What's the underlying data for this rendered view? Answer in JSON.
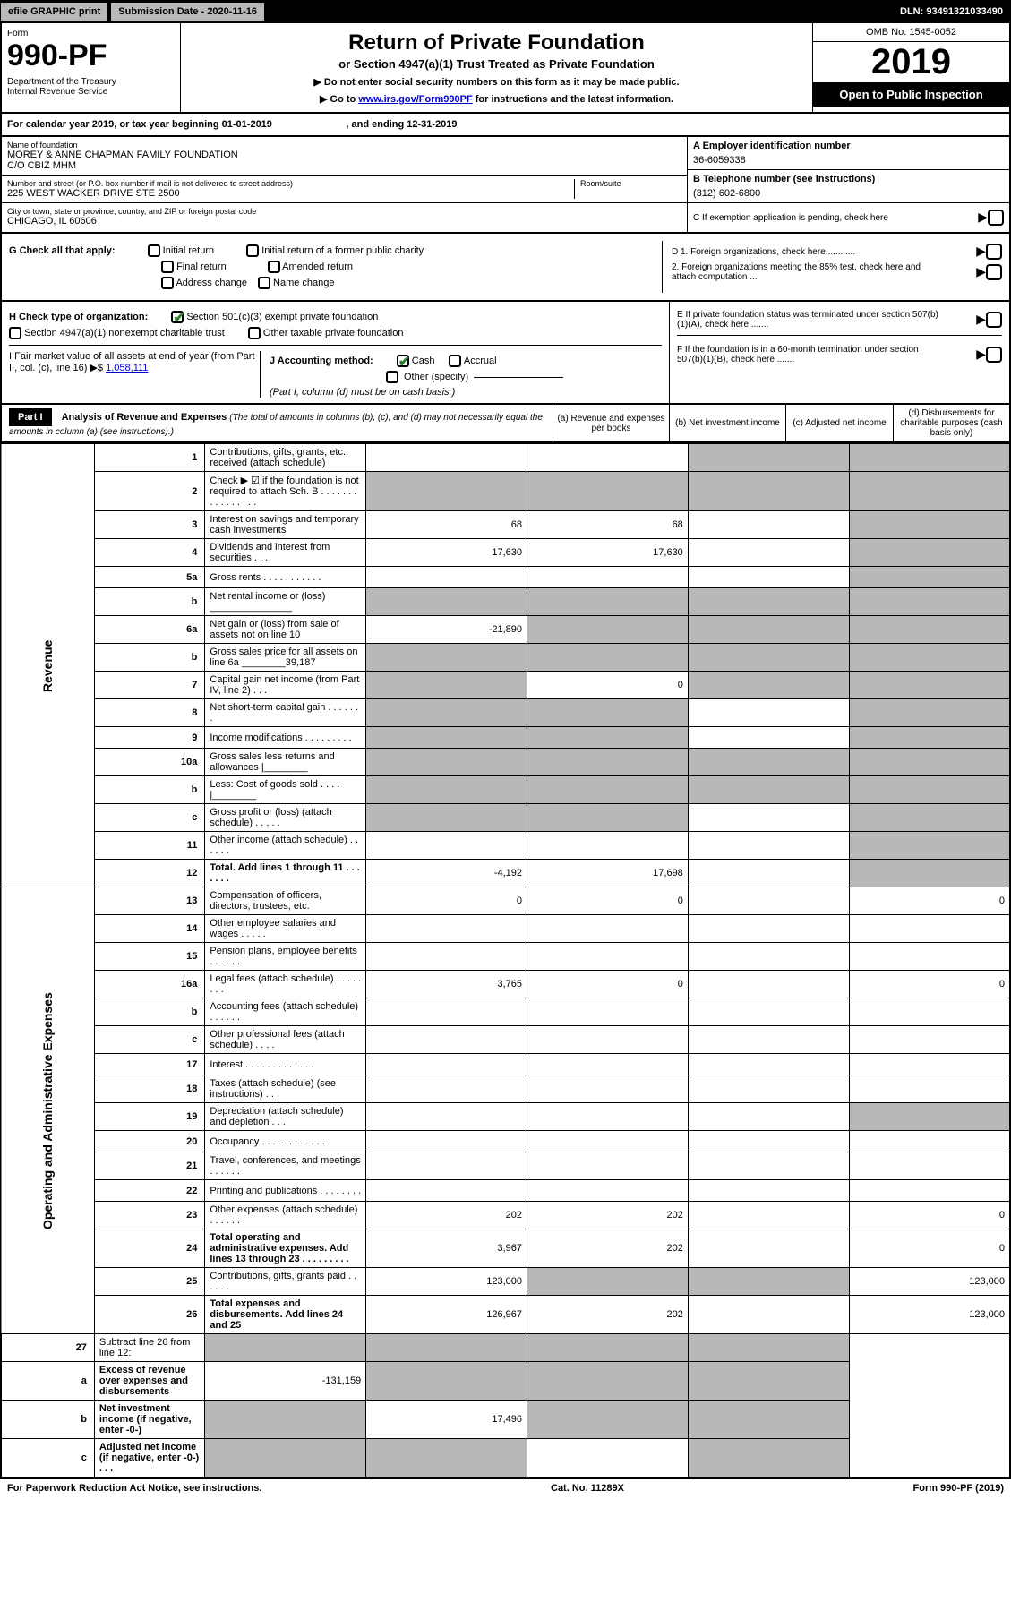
{
  "topbar": {
    "efile": "efile GRAPHIC print",
    "submission": "Submission Date - 2020-11-16",
    "dln": "DLN: 93491321033490"
  },
  "header": {
    "form_label": "Form",
    "form_number": "990-PF",
    "dept": "Department of the Treasury\nInternal Revenue Service",
    "title": "Return of Private Foundation",
    "subtitle": "or Section 4947(a)(1) Trust Treated as Private Foundation",
    "note1": "▶ Do not enter social security numbers on this form as it may be made public.",
    "note2_prefix": "▶ Go to ",
    "note2_link": "www.irs.gov/Form990PF",
    "note2_suffix": " for instructions and the latest information.",
    "omb": "OMB No. 1545-0052",
    "year": "2019",
    "open_public": "Open to Public Inspection"
  },
  "cal_year": "For calendar year 2019, or tax year beginning 01-01-2019                           , and ending 12-31-2019",
  "info": {
    "name_label": "Name of foundation",
    "name": "MOREY & ANNE CHAPMAN FAMILY FOUNDATION\nC/O CBIZ MHM",
    "addr_label": "Number and street (or P.O. box number if mail is not delivered to street address)",
    "addr": "225 WEST WACKER DRIVE STE 2500",
    "room_label": "Room/suite",
    "city_label": "City or town, state or province, country, and ZIP or foreign postal code",
    "city": "CHICAGO, IL  60606",
    "ein_label": "A Employer identification number",
    "ein": "36-6059338",
    "tel_label": "B Telephone number (see instructions)",
    "tel": "(312) 602-6800",
    "c_label": "C If exemption application is pending, check here"
  },
  "checks": {
    "g_label": "G Check all that apply:",
    "initial": "Initial return",
    "initial_former": "Initial return of a former public charity",
    "final": "Final return",
    "amended": "Amended return",
    "address": "Address change",
    "name_change": "Name change",
    "d1": "D 1. Foreign organizations, check here............",
    "d2": "2. Foreign organizations meeting the 85% test, check here and attach computation ...",
    "e": "E  If private foundation status was terminated under section 507(b)(1)(A), check here .......",
    "f": "F  If the foundation is in a 60-month termination under section 507(b)(1)(B), check here ......."
  },
  "hij": {
    "h_label": "H Check type of organization:",
    "h_501c3": "Section 501(c)(3) exempt private foundation",
    "h_4947": "Section 4947(a)(1) nonexempt charitable trust",
    "h_other": "Other taxable private foundation",
    "i_label": "I Fair market value of all assets at end of year (from Part II, col. (c), line 16) ▶$",
    "i_value": "1,058,111",
    "j_label": "J Accounting method:",
    "j_cash": "Cash",
    "j_accrual": "Accrual",
    "j_other": "Other (specify)",
    "j_note": "(Part I, column (d) must be on cash basis.)"
  },
  "part1": {
    "label": "Part I",
    "title": "Analysis of Revenue and Expenses",
    "desc": "(The total of amounts in columns (b), (c), and (d) may not necessarily equal the amounts in column (a) (see instructions).)",
    "col_a": "(a)    Revenue and expenses per books",
    "col_b": "(b)   Net investment income",
    "col_c": "(c)   Adjusted net income",
    "col_d": "(d)   Disbursements for charitable purposes (cash basis only)"
  },
  "sections": {
    "revenue": "Revenue",
    "expenses": "Operating and Administrative Expenses"
  },
  "rows": [
    {
      "n": "1",
      "d": "Contributions, gifts, grants, etc., received (attach schedule)",
      "a": "",
      "b": "",
      "c": "shade",
      "dd": "shade"
    },
    {
      "n": "2",
      "d": "Check ▶ ☑ if the foundation is not required to attach Sch. B    .   .   .   .   .   .   .   .   .   .   .   .   .   .   .   .",
      "a": "shade",
      "b": "shade",
      "c": "shade",
      "dd": "shade"
    },
    {
      "n": "3",
      "d": "Interest on savings and temporary cash investments",
      "a": "68",
      "b": "68",
      "c": "",
      "dd": "shade"
    },
    {
      "n": "4",
      "d": "Dividends and interest from securities   .   .   .",
      "a": "17,630",
      "b": "17,630",
      "c": "",
      "dd": "shade"
    },
    {
      "n": "5a",
      "d": "Gross rents   .   .   .   .   .   .   .   .   .   .   .",
      "a": "",
      "b": "",
      "c": "",
      "dd": "shade"
    },
    {
      "n": "b",
      "d": "Net rental income or (loss)   _______________",
      "a": "shade",
      "b": "shade",
      "c": "shade",
      "dd": "shade"
    },
    {
      "n": "6a",
      "d": "Net gain or (loss) from sale of assets not on line 10",
      "a": "-21,890",
      "b": "shade",
      "c": "shade",
      "dd": "shade"
    },
    {
      "n": "b",
      "d": "Gross sales price for all assets on line 6a ________39,187",
      "a": "shade",
      "b": "shade",
      "c": "shade",
      "dd": "shade"
    },
    {
      "n": "7",
      "d": "Capital gain net income (from Part IV, line 2)   .   .   .",
      "a": "shade",
      "b": "0",
      "c": "shade",
      "dd": "shade"
    },
    {
      "n": "8",
      "d": "Net short-term capital gain   .   .   .   .   .   .   .",
      "a": "shade",
      "b": "shade",
      "c": "",
      "dd": "shade"
    },
    {
      "n": "9",
      "d": "Income modifications   .   .   .   .   .   .   .   .   .",
      "a": "shade",
      "b": "shade",
      "c": "",
      "dd": "shade"
    },
    {
      "n": "10a",
      "d": "Gross sales less returns and allowances  |________",
      "a": "shade",
      "b": "shade",
      "c": "shade",
      "dd": "shade"
    },
    {
      "n": "b",
      "d": "Less: Cost of goods sold   .   .   .   .   |________",
      "a": "shade",
      "b": "shade",
      "c": "shade",
      "dd": "shade"
    },
    {
      "n": "c",
      "d": "Gross profit or (loss) (attach schedule)   .   .   .   .   .",
      "a": "shade",
      "b": "shade",
      "c": "",
      "dd": "shade"
    },
    {
      "n": "11",
      "d": "Other income (attach schedule)   .   .   .   .   .   .",
      "a": "",
      "b": "",
      "c": "",
      "dd": "shade"
    },
    {
      "n": "12",
      "d": "Total. Add lines 1 through 11   .   .   .   .   .   .   .",
      "a": "-4,192",
      "b": "17,698",
      "c": "",
      "dd": "shade",
      "bold": true
    }
  ],
  "exp_rows": [
    {
      "n": "13",
      "d": "Compensation of officers, directors, trustees, etc.",
      "a": "0",
      "b": "0",
      "c": "",
      "dd": "0"
    },
    {
      "n": "14",
      "d": "Other employee salaries and wages   .   .   .   .   .",
      "a": "",
      "b": "",
      "c": "",
      "dd": ""
    },
    {
      "n": "15",
      "d": "Pension plans, employee benefits   .   .   .   .   .   .",
      "a": "",
      "b": "",
      "c": "",
      "dd": ""
    },
    {
      "n": "16a",
      "d": "Legal fees (attach schedule)   .   .   .   .   .   .   .   .",
      "a": "3,765",
      "b": "0",
      "c": "",
      "dd": "0"
    },
    {
      "n": "b",
      "d": "Accounting fees (attach schedule)   .   .   .   .   .   .",
      "a": "",
      "b": "",
      "c": "",
      "dd": ""
    },
    {
      "n": "c",
      "d": "Other professional fees (attach schedule)   .   .   .   .",
      "a": "",
      "b": "",
      "c": "",
      "dd": ""
    },
    {
      "n": "17",
      "d": "Interest   .   .   .   .   .   .   .   .   .   .   .   .   .",
      "a": "",
      "b": "",
      "c": "",
      "dd": ""
    },
    {
      "n": "18",
      "d": "Taxes (attach schedule) (see instructions)   .   .   .",
      "a": "",
      "b": "",
      "c": "",
      "dd": ""
    },
    {
      "n": "19",
      "d": "Depreciation (attach schedule) and depletion   .   .   .",
      "a": "",
      "b": "",
      "c": "",
      "dd": "shade"
    },
    {
      "n": "20",
      "d": "Occupancy   .   .   .   .   .   .   .   .   .   .   .   .",
      "a": "",
      "b": "",
      "c": "",
      "dd": ""
    },
    {
      "n": "21",
      "d": "Travel, conferences, and meetings   .   .   .   .   .   .",
      "a": "",
      "b": "",
      "c": "",
      "dd": ""
    },
    {
      "n": "22",
      "d": "Printing and publications   .   .   .   .   .   .   .   .",
      "a": "",
      "b": "",
      "c": "",
      "dd": ""
    },
    {
      "n": "23",
      "d": "Other expenses (attach schedule)   .   .   .   .   .   .",
      "a": "202",
      "b": "202",
      "c": "",
      "dd": "0"
    },
    {
      "n": "24",
      "d": "Total operating and administrative expenses. Add lines 13 through 23   .   .   .   .   .   .   .   .   .",
      "a": "3,967",
      "b": "202",
      "c": "",
      "dd": "0",
      "bold": true
    },
    {
      "n": "25",
      "d": "Contributions, gifts, grants paid   .   .   .   .   .   .",
      "a": "123,000",
      "b": "shade",
      "c": "shade",
      "dd": "123,000"
    },
    {
      "n": "26",
      "d": "Total expenses and disbursements. Add lines 24 and 25",
      "a": "126,967",
      "b": "202",
      "c": "",
      "dd": "123,000",
      "bold": true
    }
  ],
  "final_rows": [
    {
      "n": "27",
      "d": "Subtract line 26 from line 12:",
      "a": "shade",
      "b": "shade",
      "c": "shade",
      "dd": "shade"
    },
    {
      "n": "a",
      "d": "Excess of revenue over expenses and disbursements",
      "a": "-131,159",
      "b": "shade",
      "c": "shade",
      "dd": "shade",
      "bold": true
    },
    {
      "n": "b",
      "d": "Net investment income (if negative, enter -0-)",
      "a": "shade",
      "b": "17,496",
      "c": "shade",
      "dd": "shade",
      "bold": true
    },
    {
      "n": "c",
      "d": "Adjusted net income (if negative, enter -0-)   .   .   .",
      "a": "shade",
      "b": "shade",
      "c": "",
      "dd": "shade",
      "bold": true
    }
  ],
  "footer": {
    "left": "For Paperwork Reduction Act Notice, see instructions.",
    "center": "Cat. No. 11289X",
    "right": "Form 990-PF (2019)"
  }
}
